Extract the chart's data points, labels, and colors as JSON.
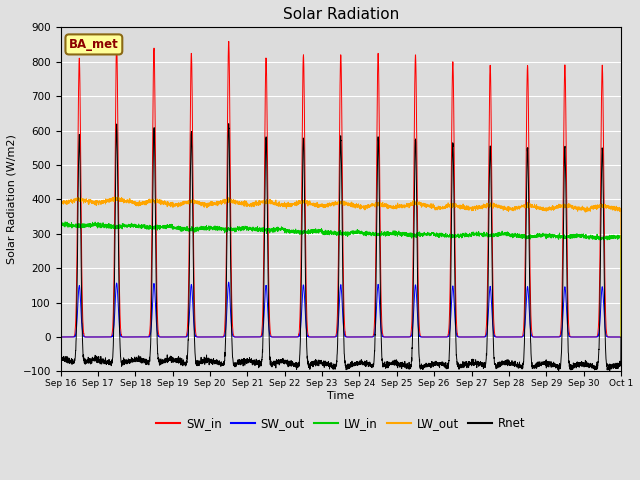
{
  "title": "Solar Radiation",
  "ylabel": "Solar Radiation (W/m2)",
  "xlabel": "Time",
  "annotation": "BA_met",
  "ylim": [
    -100,
    900
  ],
  "yticks": [
    -100,
    0,
    100,
    200,
    300,
    400,
    500,
    600,
    700,
    800,
    900
  ],
  "n_days": 15,
  "colors": {
    "SW_in": "#FF0000",
    "SW_out": "#0000FF",
    "LW_in": "#00CC00",
    "LW_out": "#FFA500",
    "Rnet": "#000000"
  },
  "xtick_labels": [
    "Sep 16",
    "Sep 17",
    "Sep 18",
    "Sep 19",
    "Sep 20",
    "Sep 21",
    "Sep 22",
    "Sep 23",
    "Sep 24",
    "Sep 25",
    "Sep 26",
    "Sep 27",
    "Sep 28",
    "Sep 29",
    "Sep 30",
    "Oct 1"
  ],
  "fig_width": 6.4,
  "fig_height": 4.8,
  "dpi": 100
}
